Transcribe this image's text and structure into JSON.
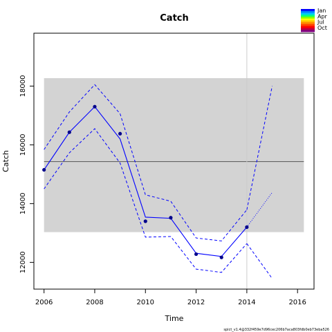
{
  "chart_data": {
    "type": "line",
    "title": "Catch",
    "xlabel": "Time",
    "ylabel": "Catch",
    "xlim": [
      2005.6,
      2016.65
    ],
    "ylim": [
      11090,
      19800
    ],
    "x_ticks": [
      2006,
      2008,
      2010,
      2012,
      2014,
      2016
    ],
    "y_ticks": [
      12000,
      14000,
      16000,
      18000
    ],
    "x_tick_labels": [
      "2006",
      "2008",
      "2010",
      "2012",
      "2014",
      "2016"
    ],
    "y_tick_labels": [
      "12000",
      "14000",
      "16000",
      "18000"
    ],
    "grid": false,
    "band": {
      "x": [
        2006,
        2016.25
      ],
      "y": [
        13030,
        18270
      ],
      "color": "#d3d3d3"
    },
    "reference_line": {
      "y": 15430,
      "color": "#555555"
    },
    "vline": {
      "x": 2014,
      "color": "#cccccc"
    },
    "observed": {
      "x": [
        2006,
        2007,
        2008,
        2009,
        2010,
        2011,
        2012,
        2013,
        2014
      ],
      "y": [
        15150,
        16430,
        17300,
        16380,
        13400,
        13520,
        12280,
        12170,
        13200
      ]
    },
    "estimate": {
      "x": [
        2006,
        2007,
        2008,
        2009,
        2010,
        2011,
        2012,
        2013,
        2014
      ],
      "y": [
        15150,
        16430,
        17300,
        16200,
        13540,
        13500,
        12310,
        12200,
        13200
      ]
    },
    "upper_ci": {
      "x": [
        2006,
        2007,
        2008,
        2009,
        2010,
        2011,
        2012,
        2013,
        2014
      ],
      "y": [
        15840,
        17120,
        18050,
        17060,
        14300,
        14080,
        12830,
        12730,
        13790
      ]
    },
    "lower_ci": {
      "x": [
        2006,
        2007,
        2008,
        2009,
        2010,
        2011,
        2012,
        2013,
        2014
      ],
      "y": [
        14500,
        15730,
        16550,
        15380,
        12860,
        12880,
        11770,
        11660,
        12640
      ]
    },
    "forecast": {
      "estimate": {
        "x": [
          2014,
          2015
        ],
        "y": [
          13200,
          14380
        ]
      },
      "upper": {
        "x": [
          2014,
          2015
        ],
        "y": [
          13790,
          18000
        ]
      },
      "lower": {
        "x": [
          2014,
          2015
        ],
        "y": [
          12640,
          11450
        ]
      }
    },
    "legend": {
      "position": "top-right",
      "labels": [
        "Jan",
        "Apr",
        "Jul",
        "Oct"
      ],
      "colors": [
        "#0000ff",
        "#0080ff",
        "#00c8ff",
        "#00ff80",
        "#80ff00",
        "#ffff00",
        "#ffc000",
        "#ff8000",
        "#ff4000",
        "#ff0000",
        "#c00040",
        "#800080"
      ]
    },
    "colors": {
      "series": "#0000ff",
      "points": "#00008b"
    }
  },
  "footer": {
    "note": "spict_v1.4@332f459e7d96cec206b7aca803fdb0eb73eba526"
  }
}
